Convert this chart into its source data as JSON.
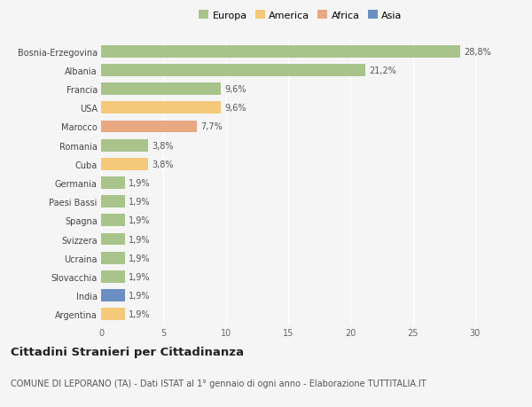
{
  "categories": [
    "Bosnia-Erzegovina",
    "Albania",
    "Francia",
    "USA",
    "Marocco",
    "Romania",
    "Cuba",
    "Germania",
    "Paesi Bassi",
    "Spagna",
    "Svizzera",
    "Ucraina",
    "Slovacchia",
    "India",
    "Argentina"
  ],
  "values": [
    28.8,
    21.2,
    9.6,
    9.6,
    7.7,
    3.8,
    3.8,
    1.9,
    1.9,
    1.9,
    1.9,
    1.9,
    1.9,
    1.9,
    1.9
  ],
  "labels": [
    "28,8%",
    "21,2%",
    "9,6%",
    "9,6%",
    "7,7%",
    "3,8%",
    "3,8%",
    "1,9%",
    "1,9%",
    "1,9%",
    "1,9%",
    "1,9%",
    "1,9%",
    "1,9%",
    "1,9%"
  ],
  "colors": [
    "#a8c48a",
    "#a8c48a",
    "#a8c48a",
    "#f5c97a",
    "#e8a882",
    "#a8c48a",
    "#f5c97a",
    "#a8c48a",
    "#a8c48a",
    "#a8c48a",
    "#a8c48a",
    "#a8c48a",
    "#a8c48a",
    "#6b8fc2",
    "#f5c97a"
  ],
  "legend_labels": [
    "Europa",
    "America",
    "Africa",
    "Asia"
  ],
  "legend_colors": [
    "#a8c48a",
    "#f5c97a",
    "#e8a882",
    "#6b8fc2"
  ],
  "xlim": [
    0,
    32
  ],
  "xticks": [
    0,
    5,
    10,
    15,
    20,
    25,
    30
  ],
  "title": "Cittadini Stranieri per Cittadinanza",
  "subtitle": "COMUNE DI LEPORANO (TA) - Dati ISTAT al 1° gennaio di ogni anno - Elaborazione TUTTITALIA.IT",
  "bg_color": "#f5f5f5",
  "grid_color": "#ffffff",
  "bar_height": 0.65,
  "title_fontsize": 9.5,
  "subtitle_fontsize": 7,
  "label_fontsize": 7,
  "tick_fontsize": 7,
  "legend_fontsize": 8
}
